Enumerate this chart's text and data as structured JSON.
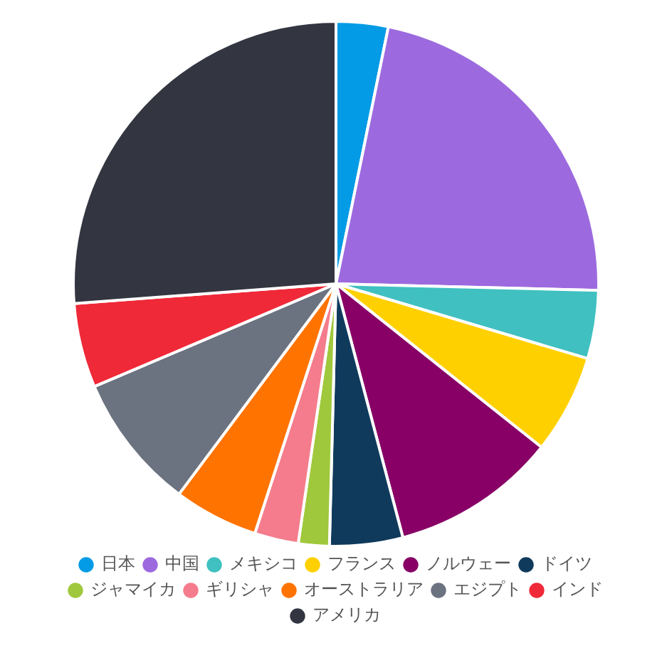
{
  "chart_data": {
    "type": "pie",
    "categories": [
      "日本",
      "中国",
      "メキシコ",
      "フランス",
      "ノルウェー",
      "ドイツ",
      "ジャマイカ",
      "ギリシャ",
      "オーストラリア",
      "エジプト",
      "インド",
      "アメリカ"
    ],
    "values": [
      3.2,
      22.2,
      4.2,
      6.1,
      10.2,
      4.5,
      1.9,
      2.7,
      5.2,
      8.4,
      5.2,
      26.2
    ],
    "colors": [
      "#039be5",
      "#9c6ade",
      "#40c0c0",
      "#ffd000",
      "#880066",
      "#0f3a5c",
      "#a0c83c",
      "#f47c8c",
      "#ff7300",
      "#6b7280",
      "#ef2938",
      "#333640"
    ],
    "legend": "bottom"
  }
}
